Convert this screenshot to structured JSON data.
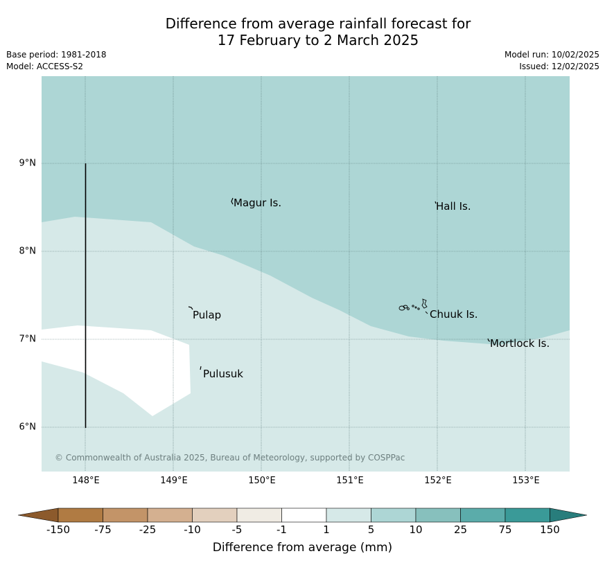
{
  "title_line1": "Difference from average rainfall forecast for",
  "title_line2": "17 February to 2 March 2025",
  "base_period": "Base period: 1981-2018",
  "model": "Model: ACCESS-S2",
  "model_run": "Model run: 10/02/2025",
  "issued": "Issued: 12/02/2025",
  "map": {
    "lat_labels": [
      "9°N",
      "8°N",
      "7°N",
      "6°N"
    ],
    "lon_labels": [
      "148°E",
      "149°E",
      "150°E",
      "151°E",
      "152°E",
      "153°E"
    ],
    "places": [
      "Magur Is.",
      "Hall Is.",
      "Pulap",
      "Chuuk Is.",
      "Mortlock Is.",
      "Pulusuk"
    ],
    "copyright": "© Commonwealth of Australia 2025, Bureau of Meteorology, supported by COSPPac",
    "colors": {
      "band_5_10": "#add6d5",
      "band_1_5": "#d6e9e8",
      "band_minus1_1": "#ffffff",
      "grid": "#5b7a7a"
    }
  },
  "colorbar": {
    "ticks": [
      "-150",
      "-75",
      "-25",
      "-10",
      "-5",
      "-1",
      "1",
      "5",
      "10",
      "25",
      "75",
      "150"
    ],
    "colors": [
      "#8c5a2c",
      "#b07b43",
      "#c39468",
      "#d4b090",
      "#e3d0be",
      "#f0ece4",
      "#ffffff",
      "#d6e9e8",
      "#add6d5",
      "#87c0bd",
      "#5bacaa",
      "#3a9a98",
      "#287d7c"
    ],
    "label": "Difference from average (mm)"
  }
}
